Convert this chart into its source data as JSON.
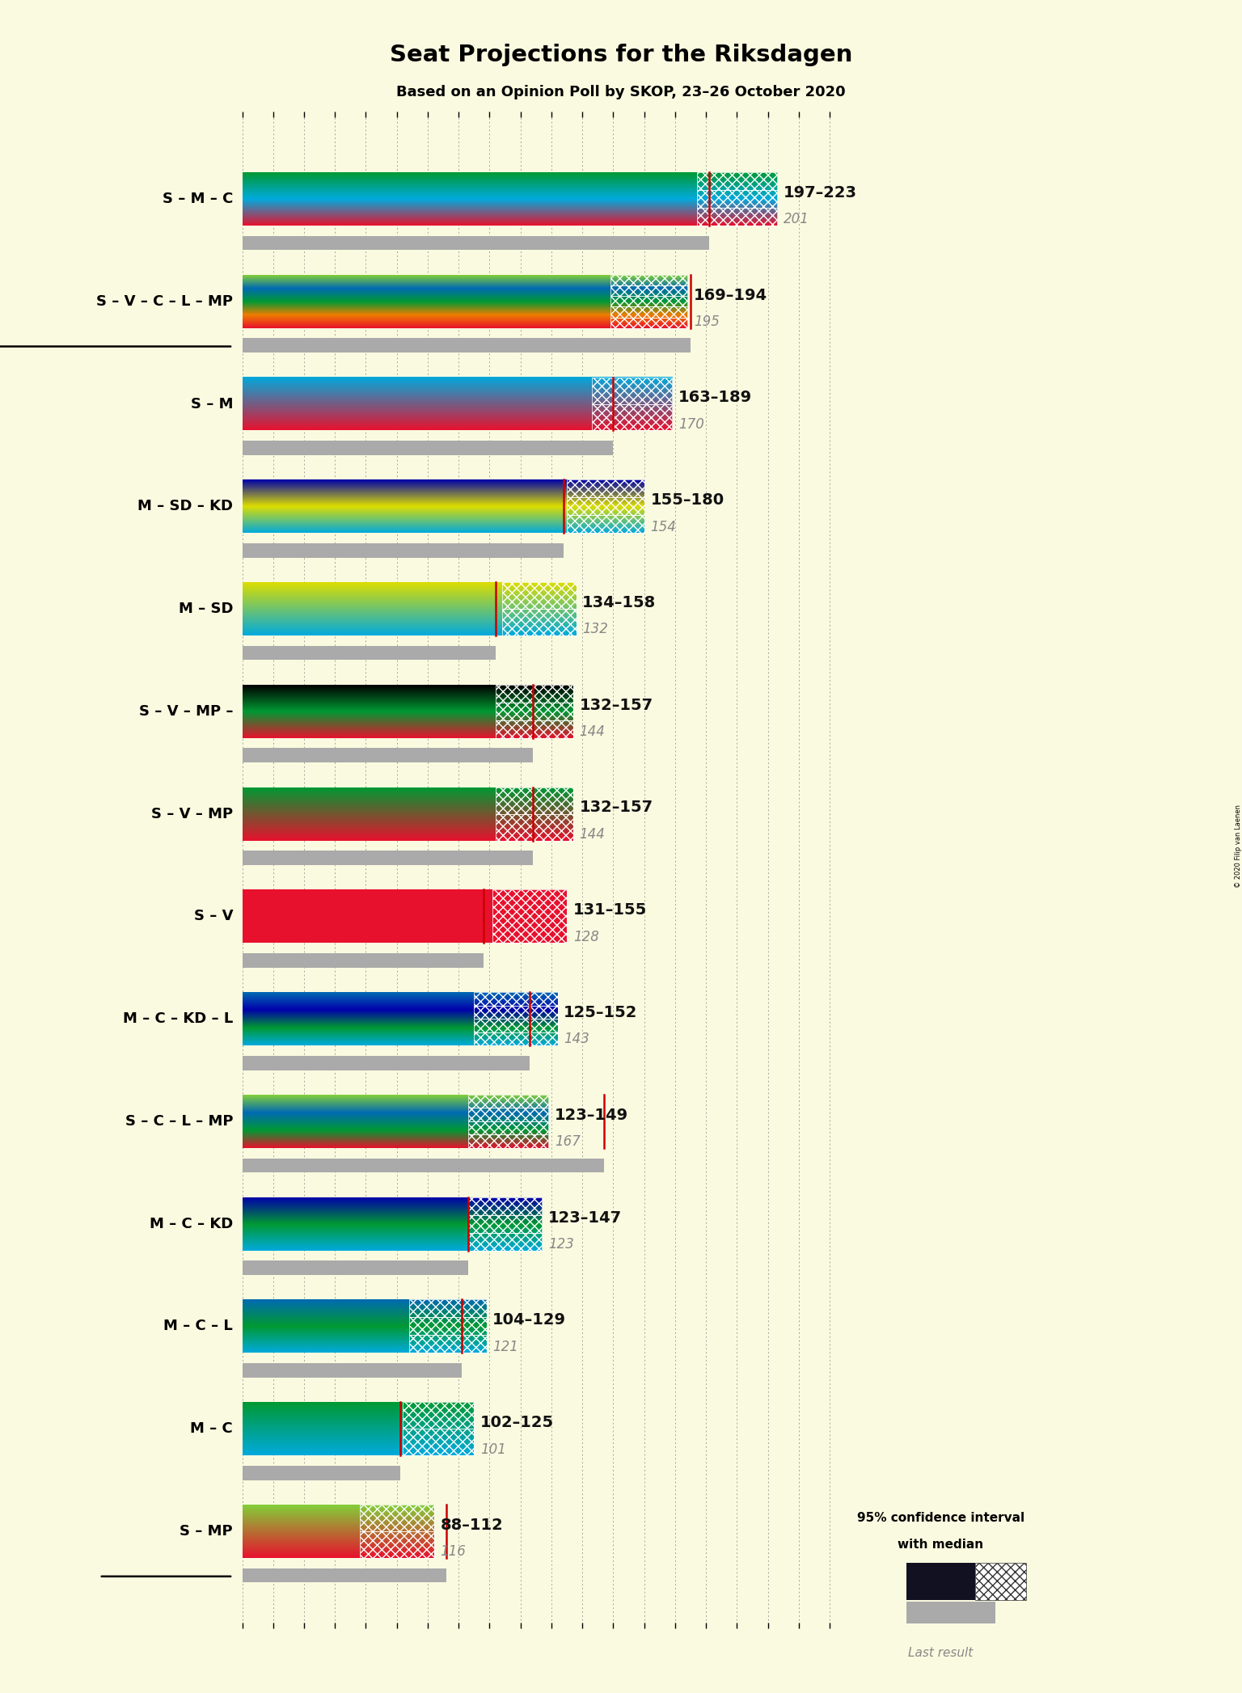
{
  "title": "Seat Projections for the Riksdagen",
  "subtitle": "Based on an Opinion Poll by SKOP, 23–26 October 2020",
  "copyright": "© 2020 Filip van Laenen",
  "background_color": "#FAFAE0",
  "coalitions": [
    {
      "name": "S – M – C",
      "underline": false,
      "ci_low": 197,
      "ci_high": 223,
      "median": 201,
      "last_result": 201,
      "colors": [
        "#E8112d",
        "#00AADD",
        "#009933"
      ]
    },
    {
      "name": "S – V – C – L – MP",
      "underline": true,
      "ci_low": 169,
      "ci_high": 194,
      "median": 195,
      "last_result": 195,
      "colors": [
        "#E8112d",
        "#EF7D00",
        "#009933",
        "#006AB3",
        "#83CF39"
      ]
    },
    {
      "name": "S – M",
      "underline": false,
      "ci_low": 163,
      "ci_high": 189,
      "median": 170,
      "last_result": 170,
      "colors": [
        "#E8112d",
        "#00AADD"
      ]
    },
    {
      "name": "M – SD – KD",
      "underline": false,
      "ci_low": 155,
      "ci_high": 180,
      "median": 154,
      "last_result": 154,
      "colors": [
        "#00AADD",
        "#DDDD00",
        "#0000AA"
      ]
    },
    {
      "name": "M – SD",
      "underline": false,
      "ci_low": 134,
      "ci_high": 158,
      "median": 132,
      "last_result": 132,
      "colors": [
        "#00AADD",
        "#DDDD00"
      ]
    },
    {
      "name": "S – V – MP –",
      "underline": false,
      "ci_low": 132,
      "ci_high": 157,
      "median": 144,
      "last_result": 144,
      "colors": [
        "#E8112d",
        "#009933",
        "#000000"
      ]
    },
    {
      "name": "S – V – MP",
      "underline": false,
      "ci_low": 132,
      "ci_high": 157,
      "median": 144,
      "last_result": 144,
      "colors": [
        "#E8112d",
        "#009933"
      ]
    },
    {
      "name": "S – V",
      "underline": false,
      "ci_low": 131,
      "ci_high": 155,
      "median": 128,
      "last_result": 128,
      "colors": [
        "#E8112d"
      ]
    },
    {
      "name": "M – C – KD – L",
      "underline": false,
      "ci_low": 125,
      "ci_high": 152,
      "median": 143,
      "last_result": 143,
      "colors": [
        "#00AADD",
        "#009933",
        "#0000AA",
        "#006AB3"
      ]
    },
    {
      "name": "S – C – L – MP",
      "underline": false,
      "ci_low": 123,
      "ci_high": 149,
      "median": 167,
      "last_result": 167,
      "colors": [
        "#E8112d",
        "#009933",
        "#006AB3",
        "#83CF39"
      ]
    },
    {
      "name": "M – C – KD",
      "underline": false,
      "ci_low": 123,
      "ci_high": 147,
      "median": 123,
      "last_result": 123,
      "colors": [
        "#00AADD",
        "#009933",
        "#0000AA"
      ]
    },
    {
      "name": "M – C – L",
      "underline": false,
      "ci_low": 104,
      "ci_high": 129,
      "median": 121,
      "last_result": 121,
      "colors": [
        "#00AADD",
        "#009933",
        "#006AB3"
      ]
    },
    {
      "name": "M – C",
      "underline": false,
      "ci_low": 102,
      "ci_high": 125,
      "median": 101,
      "last_result": 101,
      "colors": [
        "#00AADD",
        "#009933"
      ]
    },
    {
      "name": "S – MP",
      "underline": true,
      "ci_low": 88,
      "ci_high": 112,
      "median": 116,
      "last_result": 116,
      "colors": [
        "#E8112d",
        "#83CF39"
      ]
    }
  ],
  "xmin": 50,
  "xmax": 240,
  "tick_step": 10,
  "median_line_color": "#CC0000",
  "last_result_color": "#AAAAAA",
  "label_range_color": "#111111",
  "label_last_color": "#888888",
  "legend_text1": "95% confidence interval",
  "legend_text2": "with median",
  "legend_text3": "Last result"
}
